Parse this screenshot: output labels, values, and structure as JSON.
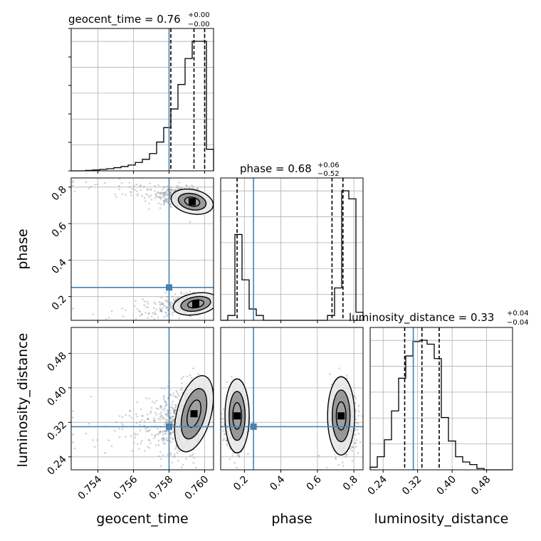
{
  "chart_data": {
    "type": "corner",
    "parameters": [
      "geocent_time",
      "phase",
      "luminosity_distance"
    ],
    "injection": {
      "geocent_time": 0.758,
      "phase": 0.25,
      "luminosity_distance": 0.31
    },
    "colors": {
      "axes": "#000000",
      "grid": "#b0b0b0",
      "truth": "#4682b4",
      "hist": "#000000",
      "points": "#7f7f7f"
    },
    "titles": [
      {
        "main": "geocent_time = 0.76",
        "plus": "+0.00",
        "minus": "−0.00"
      },
      {
        "main": "phase = 0.68",
        "plus": "+0.06",
        "minus": "−0.52"
      },
      {
        "main": "luminosity_distance = 0.33",
        "plus": "+0.04",
        "minus": "−0.04"
      }
    ],
    "xlabels": [
      "geocent_time",
      "phase",
      "luminosity_distance"
    ],
    "ylabels": [
      "phase",
      "luminosity_distance"
    ],
    "ranges": {
      "geocent_time": [
        0.7525,
        0.7605
      ],
      "phase": [
        0.07,
        0.85
      ],
      "luminosity_distance": [
        0.21,
        0.54
      ]
    },
    "ticks": {
      "geocent_time": {
        "values": [
          0.754,
          0.756,
          0.758,
          0.76
        ],
        "labels": [
          "0.754",
          "0.756",
          "0.758",
          "0.760"
        ]
      },
      "phase_x": {
        "values": [
          0.2,
          0.4,
          0.6,
          0.8
        ],
        "labels": [
          "0.2",
          "0.4",
          "0.6",
          "0.8"
        ]
      },
      "phase_y": {
        "values": [
          0.2,
          0.4,
          0.6,
          0.8
        ],
        "labels": [
          "0.2",
          "0.4",
          "0.6",
          "0.8"
        ]
      },
      "luminosity_distance_x": {
        "values": [
          0.24,
          0.32,
          0.4,
          0.48
        ],
        "labels": [
          "0.24",
          "0.32",
          "0.40",
          "0.48"
        ]
      },
      "luminosity_distance_y": {
        "values": [
          0.24,
          0.32,
          0.4,
          0.48
        ],
        "labels": [
          "0.24",
          "0.32",
          "0.40",
          "0.48"
        ]
      }
    },
    "hist_geocent_time": {
      "edges": [
        0.7525,
        0.7529,
        0.7533,
        0.7537,
        0.7541,
        0.7545,
        0.7549,
        0.7553,
        0.7557,
        0.7561,
        0.7565,
        0.7569,
        0.7573,
        0.7577,
        0.7581,
        0.7585,
        0.7589,
        0.7593,
        0.7597,
        0.7601,
        0.7605
      ],
      "counts": [
        0,
        0,
        0.3,
        0.6,
        1,
        1.5,
        2.2,
        3,
        4,
        5.8,
        8,
        12,
        20,
        30,
        43,
        60,
        78,
        90,
        90,
        15
      ],
      "quantiles": [
        0.7581,
        0.7594,
        0.76
      ]
    },
    "hist_phase": {
      "edges": [
        0.07,
        0.109,
        0.148,
        0.187,
        0.226,
        0.265,
        0.304,
        0.343,
        0.382,
        0.421,
        0.46,
        0.499,
        0.538,
        0.577,
        0.616,
        0.655,
        0.694,
        0.733,
        0.772,
        0.811,
        0.85
      ],
      "counts": [
        0,
        3,
        53,
        25,
        7,
        3,
        0,
        0,
        0,
        0,
        0,
        0,
        0,
        0,
        0,
        3,
        20,
        80,
        75,
        5
      ],
      "quantiles": [
        0.16,
        0.68,
        0.74
      ]
    },
    "hist_luminosity_distance": {
      "edges": [
        0.21,
        0.2265,
        0.243,
        0.2595,
        0.276,
        0.2925,
        0.309,
        0.3255,
        0.342,
        0.3585,
        0.375,
        0.3915,
        0.408,
        0.4245,
        0.441,
        0.4575,
        0.474,
        0.4905,
        0.507,
        0.5235,
        0.54
      ],
      "counts": [
        2,
        10,
        23,
        45,
        70,
        87,
        98,
        99,
        96,
        85,
        40,
        22,
        10,
        6,
        4,
        1,
        0,
        0,
        0,
        0
      ],
      "quantiles": [
        0.29,
        0.33,
        0.37
      ]
    }
  }
}
